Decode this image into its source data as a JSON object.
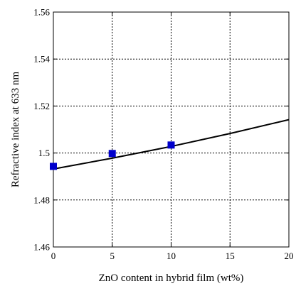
{
  "chart_data": {
    "type": "scatter",
    "title": "",
    "xlabel": "ZnO content in hybrid film (wt%)",
    "ylabel": "Refractive index at 633 nm",
    "xlim": [
      0,
      20
    ],
    "ylim": [
      1.46,
      1.56
    ],
    "x_ticks": [
      0,
      5,
      10,
      15,
      20
    ],
    "y_ticks": [
      1.46,
      1.48,
      1.5,
      1.52,
      1.54,
      1.56
    ],
    "x_tick_labels": [
      "0",
      "5",
      "10",
      "15",
      "20"
    ],
    "y_tick_labels": [
      "1.46",
      "1.48",
      "1.5",
      "1.52",
      "1.54",
      "1.56"
    ],
    "grid": true,
    "legend": "none",
    "series": [
      {
        "kind": "points",
        "marker": "square",
        "color": "#0000cc",
        "x": [
          0,
          5,
          10
        ],
        "y": [
          1.4943,
          1.4998,
          1.5034
        ]
      },
      {
        "kind": "line",
        "color": "#000000",
        "x": [
          0,
          5,
          10,
          15,
          20
        ],
        "y": [
          1.4932,
          1.4978,
          1.5028,
          1.5083,
          1.5142
        ]
      }
    ]
  }
}
